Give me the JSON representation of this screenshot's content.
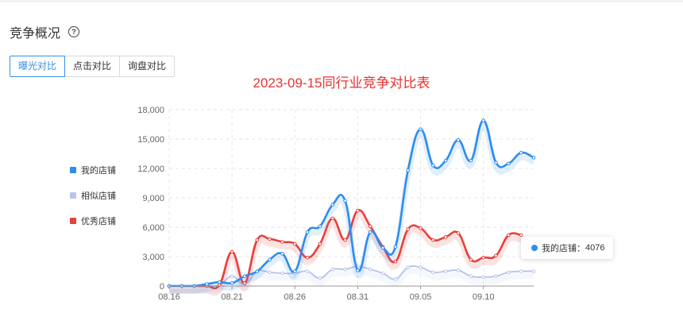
{
  "section": {
    "title": "竞争概况",
    "help_icon": "question-circle-icon"
  },
  "tabs": [
    {
      "label": "曝光对比",
      "active": true
    },
    {
      "label": "点击对比",
      "active": false
    },
    {
      "label": "询盘对比",
      "active": false
    }
  ],
  "tooltip": {
    "series": "我的店铺",
    "value": "4076"
  },
  "chart_data": {
    "type": "line",
    "title": "2023-09-15同行业竞争对比表",
    "xlabel": "",
    "ylabel": "",
    "ylim": [
      0,
      18000
    ],
    "yticks": [
      "0",
      "3,000",
      "6,000",
      "9,000",
      "12,000",
      "15,000",
      "18,000"
    ],
    "x_labels": [
      "08.16",
      "08.21",
      "08.26",
      "08.31",
      "09.05",
      "09.10"
    ],
    "x_label_positions": [
      0,
      5,
      10,
      15,
      20,
      25
    ],
    "x_range": [
      0,
      29
    ],
    "grid": true,
    "legend_position": "left",
    "series": [
      {
        "name": "我的店铺",
        "color": "#2d8cf0",
        "values": [
          0,
          0,
          0,
          200,
          400,
          300,
          1000,
          1500,
          2700,
          3300,
          1500,
          5500,
          6100,
          8300,
          8700,
          1600,
          5500,
          3900,
          4000,
          11800,
          16000,
          12300,
          12800,
          14900,
          12800,
          16900,
          12600,
          12500,
          13600,
          13100
        ]
      },
      {
        "name": "相似店铺",
        "color": "#b8c6ea",
        "values": [
          0,
          0,
          0,
          50,
          100,
          1000,
          200,
          1500,
          1400,
          1300,
          1300,
          1500,
          800,
          1700,
          1700,
          2000,
          1700,
          1300,
          700,
          1900,
          1900,
          1400,
          1500,
          1600,
          1000,
          900,
          1000,
          1400,
          1500,
          1500
        ]
      },
      {
        "name": "优秀店铺",
        "color": "#e8403a",
        "values": [
          0,
          0,
          0,
          0,
          100,
          3500,
          300,
          4700,
          4800,
          4500,
          4300,
          2900,
          4300,
          6900,
          4700,
          7700,
          6100,
          4000,
          2500,
          5800,
          5900,
          4700,
          5000,
          5400,
          2700,
          2900,
          3100,
          5200,
          5200,
          null
        ]
      }
    ]
  }
}
